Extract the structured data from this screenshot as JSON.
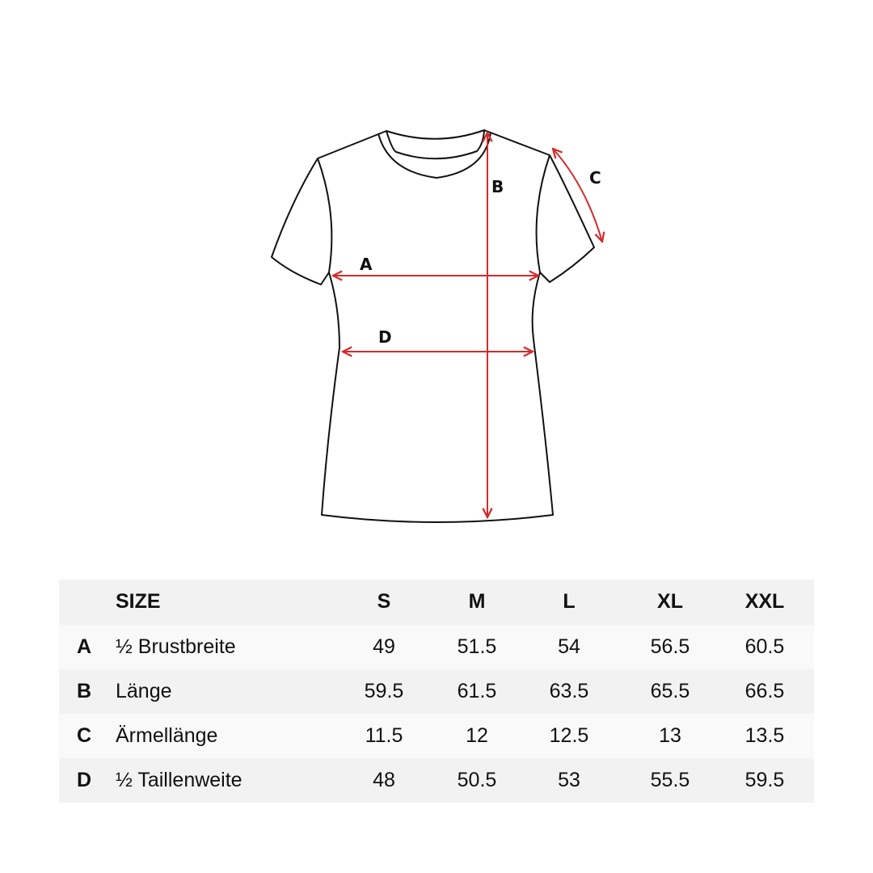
{
  "diagram": {
    "labels": {
      "a": "A",
      "b": "B",
      "c": "C",
      "d": "D"
    },
    "colors": {
      "outline": "#111111",
      "measure": "#d42a2a"
    }
  },
  "table": {
    "header": {
      "size_label": "SIZE",
      "sizes": [
        "S",
        "M",
        "L",
        "XL",
        "XXL"
      ]
    },
    "rows": [
      {
        "letter": "A",
        "label": "½ Brustbreite",
        "values": [
          "49",
          "51.5",
          "54",
          "56.5",
          "60.5"
        ]
      },
      {
        "letter": "B",
        "label": "Länge",
        "values": [
          "59.5",
          "61.5",
          "63.5",
          "65.5",
          "66.5"
        ]
      },
      {
        "letter": "C",
        "label": "Ärmellänge",
        "values": [
          "11.5",
          "12",
          "12.5",
          "13",
          "13.5"
        ]
      },
      {
        "letter": "D",
        "label": "½ Taillenweite",
        "values": [
          "48",
          "50.5",
          "53",
          "55.5",
          "59.5"
        ]
      }
    ],
    "colors": {
      "row_dark": "#f2f2f2",
      "row_light": "#f9f9f9"
    }
  }
}
